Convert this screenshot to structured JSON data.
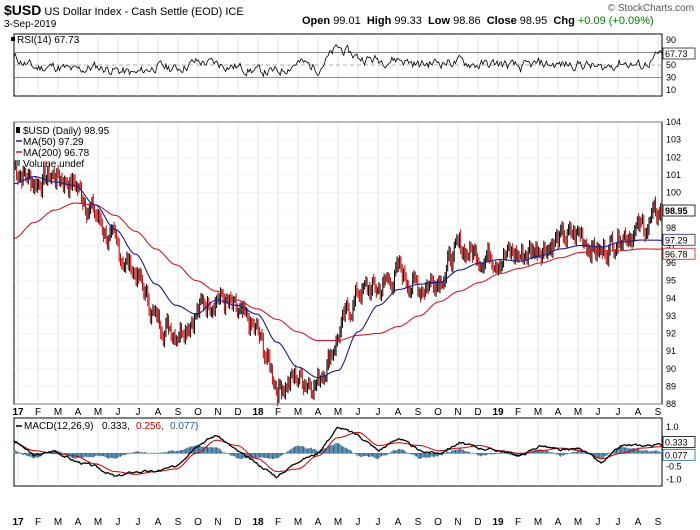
{
  "header": {
    "symbol": "$USD",
    "name": "US Dollar Index - Cash Settle (EOD)",
    "exchange": "ICE",
    "date": "3-Sep-2019",
    "open_label": "Open",
    "open": "99.01",
    "high_label": "High",
    "high": "99.33",
    "low_label": "Low",
    "low": "98.86",
    "close_label": "Close",
    "close": "98.95",
    "chg_label": "Chg",
    "chg": "+0.09 (+0.09%)",
    "watermark": "© StockCharts.com"
  },
  "colors": {
    "price": "#000000",
    "up": "#000000",
    "down": "#cc0000",
    "ma50": "#1a1a8c",
    "ma200": "#cc1f2b",
    "macd": "#000000",
    "signal": "#cc0000",
    "hist": "#1f5f8b"
  },
  "x_axis": {
    "labels": [
      "17",
      "F",
      "M",
      "A",
      "M",
      "J",
      "J",
      "A",
      "S",
      "O",
      "N",
      "D",
      "18",
      "F",
      "M",
      "A",
      "M",
      "J",
      "J",
      "A",
      "S",
      "O",
      "N",
      "D",
      "19",
      "F",
      "M",
      "A",
      "M",
      "J",
      "J",
      "A",
      "S"
    ]
  },
  "rsi": {
    "legend": "RSI(14) 67.73",
    "current": "67.73",
    "ticks": [
      "90",
      "70",
      "50",
      "30",
      "10"
    ]
  },
  "price": {
    "legend_price": "$USD (Daily) 98.95",
    "legend_ma50": "MA(50) 97.29",
    "legend_ma200": "MA(200) 96.78",
    "legend_volume": "Volume undef",
    "ticks": [
      "104",
      "103",
      "102",
      "101",
      "100",
      "99",
      "98",
      "97",
      "96",
      "95",
      "94",
      "93",
      "92",
      "91",
      "90",
      "89",
      "88"
    ],
    "badges": [
      {
        "text": "98.95",
        "value": 98.95,
        "style": "dark"
      },
      {
        "text": "97.29",
        "value": 97.29,
        "style": "blue"
      },
      {
        "text": "96.78",
        "value": 96.78,
        "style": "red"
      }
    ]
  },
  "macd": {
    "legend_label": "MACD(12,26,9)",
    "legend_macd": "0.333",
    "legend_signal": "0.256",
    "legend_hist": "0.077",
    "ticks": [
      "1.0",
      "0.5",
      "-0.5",
      "-1.0"
    ],
    "badges": [
      {
        "text": "0.333",
        "value": 0.333
      },
      {
        "text": "0.077",
        "value": 0.077
      }
    ]
  },
  "chart_data": [
    {
      "type": "line",
      "title": "RSI(14)",
      "x": [
        "17",
        "F",
        "M",
        "A",
        "M",
        "J",
        "J",
        "A",
        "S",
        "O",
        "N",
        "D",
        "18",
        "F",
        "M",
        "A",
        "M",
        "J",
        "J",
        "A",
        "S",
        "O",
        "N",
        "D",
        "19",
        "F",
        "M",
        "A",
        "M",
        "J",
        "J",
        "A",
        "S"
      ],
      "series": [
        {
          "name": "RSI(14)",
          "values": [
            62,
            45,
            48,
            40,
            47,
            42,
            35,
            48,
            44,
            55,
            52,
            47,
            40,
            38,
            55,
            45,
            78,
            62,
            58,
            60,
            50,
            55,
            55,
            50,
            52,
            45,
            52,
            50,
            52,
            44,
            55,
            48,
            67.73
          ]
        }
      ],
      "ylim": [
        0,
        100
      ]
    },
    {
      "type": "line",
      "title": "$USD (Daily)",
      "x": [
        "17",
        "F",
        "M",
        "A",
        "M",
        "J",
        "J",
        "A",
        "S",
        "O",
        "N",
        "D",
        "18",
        "F",
        "M",
        "A",
        "M",
        "J",
        "J",
        "A",
        "S",
        "O",
        "N",
        "D",
        "19",
        "F",
        "M",
        "A",
        "M",
        "J",
        "J",
        "A",
        "S"
      ],
      "series": [
        {
          "name": "$USD (Daily)",
          "values": [
            101.5,
            100.6,
            101.0,
            100.5,
            98.8,
            96.8,
            95.5,
            92.8,
            92.2,
            93.2,
            94.3,
            93.0,
            92.0,
            89.0,
            89.5,
            89.3,
            91.9,
            94.4,
            94.5,
            95.5,
            94.6,
            95.3,
            96.8,
            96.5,
            96.5,
            96.4,
            97.0,
            97.3,
            97.6,
            96.5,
            97.8,
            97.9,
            98.95
          ]
        },
        {
          "name": "MA(50)",
          "values": [
            100.5,
            100.9,
            100.6,
            100.4,
            99.3,
            97.9,
            96.5,
            94.8,
            93.6,
            93.1,
            93.9,
            93.6,
            93.1,
            91.5,
            90.1,
            89.5,
            89.9,
            92.1,
            93.6,
            94.5,
            94.8,
            94.9,
            95.6,
            96.0,
            96.2,
            96.1,
            96.4,
            96.8,
            97.0,
            96.9,
            97.2,
            97.3,
            97.29
          ]
        },
        {
          "name": "MA(200)",
          "values": [
            97.4,
            98.3,
            99.0,
            99.4,
            99.3,
            98.7,
            97.8,
            96.8,
            95.9,
            95.0,
            94.4,
            93.9,
            93.4,
            92.8,
            92.1,
            91.6,
            91.6,
            91.9,
            92.0,
            92.4,
            93.0,
            93.8,
            94.4,
            94.9,
            95.4,
            95.7,
            96.0,
            96.3,
            96.6,
            96.7,
            96.7,
            96.8,
            96.78
          ]
        }
      ],
      "ylim": [
        88,
        104
      ]
    },
    {
      "type": "line",
      "title": "MACD(12,26,9)",
      "x": [
        "17",
        "F",
        "M",
        "A",
        "M",
        "J",
        "J",
        "A",
        "S",
        "O",
        "N",
        "D",
        "18",
        "F",
        "M",
        "A",
        "M",
        "J",
        "J",
        "A",
        "S",
        "O",
        "N",
        "D",
        "19",
        "F",
        "M",
        "A",
        "M",
        "J",
        "J",
        "A",
        "S"
      ],
      "series": [
        {
          "name": "MACD",
          "values": [
            0.5,
            -0.1,
            0.1,
            -0.3,
            -0.5,
            -0.9,
            -0.7,
            -0.7,
            -0.5,
            0.3,
            0.7,
            0.1,
            -0.4,
            -0.9,
            -0.3,
            0.0,
            1.0,
            0.7,
            0.1,
            0.6,
            0.1,
            0.0,
            0.4,
            0.2,
            0.1,
            -0.1,
            0.3,
            0.1,
            0.2,
            -0.4,
            0.3,
            0.3,
            0.333
          ]
        },
        {
          "name": "Signal",
          "values": [
            0.4,
            0.1,
            0.0,
            -0.1,
            -0.4,
            -0.7,
            -0.8,
            -0.7,
            -0.6,
            0.0,
            0.5,
            0.3,
            -0.2,
            -0.7,
            -0.6,
            -0.1,
            0.6,
            0.8,
            0.3,
            0.4,
            0.3,
            0.1,
            0.2,
            0.3,
            0.1,
            0.0,
            0.1,
            0.2,
            0.1,
            -0.2,
            0.0,
            0.2,
            0.256
          ]
        },
        {
          "name": "Histogram",
          "values": [
            0.1,
            -0.2,
            0.1,
            -0.2,
            -0.1,
            -0.2,
            0.1,
            0.0,
            0.1,
            0.3,
            0.2,
            -0.2,
            -0.2,
            -0.2,
            0.3,
            0.1,
            0.4,
            -0.1,
            -0.2,
            0.2,
            -0.2,
            -0.1,
            0.2,
            -0.1,
            0.0,
            -0.1,
            0.2,
            -0.1,
            0.1,
            -0.2,
            0.3,
            0.1,
            0.077
          ]
        }
      ],
      "ylim": [
        -1.25,
        1.35
      ]
    }
  ]
}
